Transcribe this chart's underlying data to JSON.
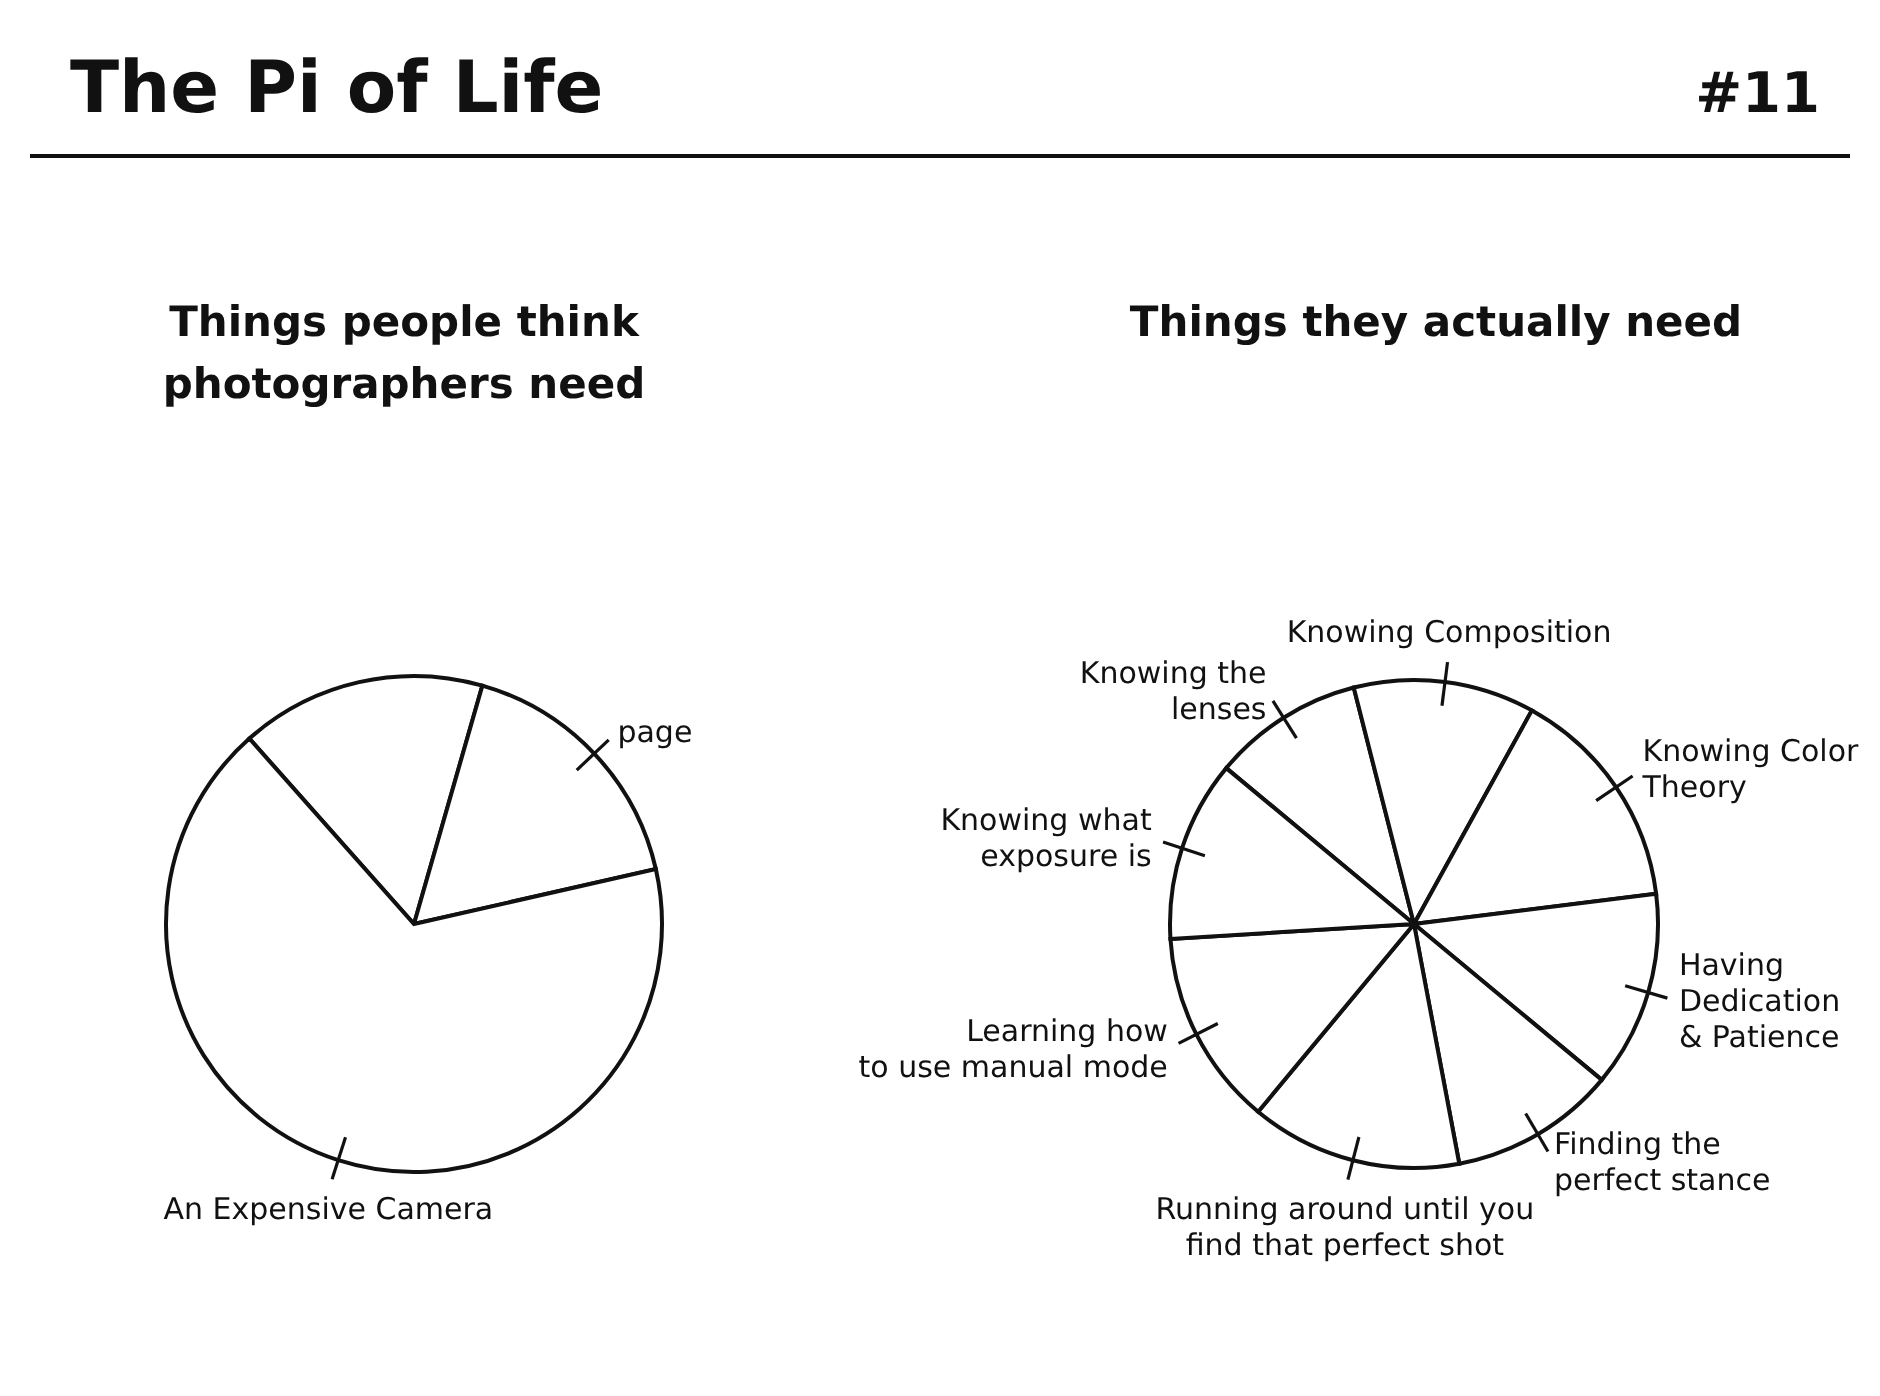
{
  "chart_data": [
    {
      "type": "other",
      "title": "The Pi of Life",
      "annotations": [
        "#11"
      ]
    },
    {
      "type": "pie",
      "title": "Things people think photographers need",
      "categories": [
        null,
        "page",
        "An Expensive Camera"
      ],
      "values": [
        16,
        17,
        67
      ],
      "colors": [
        "#ffffff",
        "#ffffff",
        "#ffffff"
      ]
    },
    {
      "type": "pie",
      "title": "Things they actually need",
      "categories": [
        "Knowing the lenses",
        "Knowing Composition",
        "Knowing Color Theory",
        "Having Dedication & Patience",
        "Finding the perfect stance",
        "Running around until you find that perfect shot",
        "Learning how to use manual mode",
        "Knowing what exposure is"
      ],
      "values": [
        10,
        12,
        15,
        13,
        11,
        14,
        13,
        12
      ],
      "colors": [
        "#ffffff",
        "#ffffff",
        "#ffffff",
        "#ffffff",
        "#ffffff",
        "#ffffff",
        "#ffffff",
        "#ffffff"
      ]
    }
  ]
}
